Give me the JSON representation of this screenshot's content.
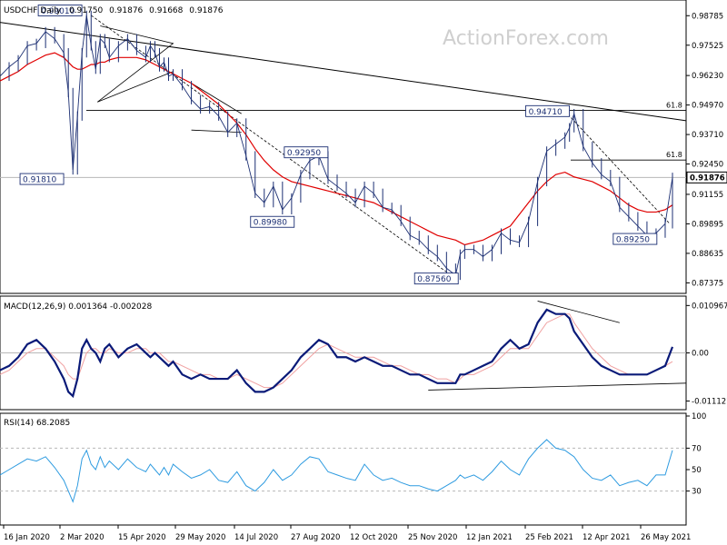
{
  "watermark": "ActionForex.com",
  "colors": {
    "price": "#1c2f73",
    "ma": "#e00000",
    "trend": "#000000",
    "grid": "#b8b8b8",
    "macd": "#0a1a78",
    "signal": "#f0a0a0",
    "rsi": "#2e9be0",
    "box": "#1c2f73"
  },
  "chart_data": [
    {
      "type": "line",
      "title": "USDCHF Daily",
      "ohlc": [
        "0.91750",
        "0.91876",
        "0.91668",
        "0.91876"
      ],
      "y_ticks": [
        "0.98785",
        "0.97525",
        "0.96230",
        "0.94970",
        "0.93710",
        "0.92450",
        "0.91155",
        "0.89895",
        "0.88635",
        "0.87375"
      ],
      "ylim": [
        0.8708,
        0.993
      ],
      "current_price": "0.91876",
      "x": [
        0,
        10,
        20,
        30,
        40,
        50,
        60,
        70,
        75,
        80,
        85,
        90,
        95,
        100,
        105,
        110,
        115,
        120,
        130,
        140,
        150,
        160,
        165,
        170,
        175,
        180,
        185,
        190,
        200,
        210,
        220,
        230,
        240,
        250,
        260,
        270,
        280,
        290,
        300,
        310,
        320,
        330,
        340,
        350,
        360,
        370,
        380,
        390,
        400,
        410,
        420,
        430,
        440,
        450,
        460,
        470,
        480,
        490,
        500,
        505,
        510,
        520,
        530,
        540,
        550,
        560,
        570,
        580,
        590,
        600,
        610,
        620,
        625,
        630,
        640,
        650,
        660,
        670,
        680,
        690,
        700,
        710,
        720,
        730,
        738
      ],
      "price": [
        0.962,
        0.966,
        0.969,
        0.975,
        0.976,
        0.981,
        0.978,
        0.972,
        0.955,
        0.922,
        0.945,
        0.972,
        0.988,
        0.975,
        0.965,
        0.978,
        0.976,
        0.97,
        0.975,
        0.978,
        0.973,
        0.97,
        0.975,
        0.972,
        0.966,
        0.968,
        0.962,
        0.963,
        0.958,
        0.952,
        0.948,
        0.949,
        0.945,
        0.938,
        0.942,
        0.928,
        0.912,
        0.908,
        0.915,
        0.905,
        0.91,
        0.92,
        0.926,
        0.928,
        0.918,
        0.915,
        0.912,
        0.908,
        0.915,
        0.912,
        0.906,
        0.905,
        0.9,
        0.894,
        0.892,
        0.888,
        0.885,
        0.88,
        0.877,
        0.886,
        0.888,
        0.888,
        0.885,
        0.888,
        0.895,
        0.892,
        0.891,
        0.9,
        0.917,
        0.93,
        0.933,
        0.936,
        0.94,
        0.946,
        0.932,
        0.925,
        0.92,
        0.917,
        0.906,
        0.902,
        0.898,
        0.894,
        0.895,
        0.899,
        0.9188
      ],
      "ma": [
        0.96,
        0.962,
        0.964,
        0.967,
        0.969,
        0.971,
        0.972,
        0.97,
        0.968,
        0.966,
        0.965,
        0.965,
        0.966,
        0.967,
        0.967,
        0.968,
        0.968,
        0.969,
        0.97,
        0.97,
        0.97,
        0.969,
        0.968,
        0.967,
        0.966,
        0.965,
        0.964,
        0.963,
        0.961,
        0.959,
        0.956,
        0.953,
        0.95,
        0.946,
        0.942,
        0.937,
        0.931,
        0.926,
        0.922,
        0.919,
        0.917,
        0.916,
        0.915,
        0.914,
        0.913,
        0.912,
        0.911,
        0.91,
        0.909,
        0.908,
        0.906,
        0.904,
        0.902,
        0.9,
        0.898,
        0.896,
        0.894,
        0.893,
        0.892,
        0.891,
        0.89,
        0.891,
        0.892,
        0.894,
        0.896,
        0.898,
        0.903,
        0.908,
        0.913,
        0.917,
        0.92,
        0.921,
        0.92,
        0.919,
        0.918,
        0.917,
        0.915,
        0.913,
        0.91,
        0.907,
        0.905,
        0.904,
        0.904,
        0.905,
        0.907
      ],
      "levels": [
        {
          "label": "0.99010",
          "value": 0.9901
        },
        {
          "label": "0.91810",
          "value": 0.9181
        },
        {
          "label": "0.89980",
          "value": 0.8998
        },
        {
          "label": "0.92950",
          "value": 0.9295
        },
        {
          "label": "0.87560",
          "value": 0.8756
        },
        {
          "label": "0.94710",
          "value": 0.9471
        },
        {
          "label": "0.89250",
          "value": 0.8925
        }
      ],
      "fib": [
        {
          "label": "61.8",
          "value": 0.9474
        },
        {
          "label": "61.8",
          "value": 0.9262
        }
      ],
      "x_labels": [
        "16 Jan 2020",
        "2 Mar 2020",
        "15 Apr 2020",
        "29 May 2020",
        "14 Jul 2020",
        "27 Aug 2020",
        "12 Oct 2020",
        "25 Nov 2020",
        "12 Jan 2021",
        "25 Feb 2021",
        "12 Apr 2021",
        "26 May 2021"
      ]
    },
    {
      "type": "line",
      "title": "MACD(12,26,9) 0.001364 -0.002028",
      "y_ticks": [
        "0.010967",
        "0.00",
        "-0.011127"
      ],
      "ylim": [
        -0.0125,
        0.0123
      ],
      "x": [
        0,
        10,
        20,
        30,
        40,
        50,
        60,
        70,
        75,
        80,
        85,
        90,
        95,
        100,
        105,
        110,
        115,
        120,
        130,
        140,
        150,
        160,
        165,
        170,
        175,
        180,
        185,
        190,
        200,
        210,
        220,
        230,
        240,
        250,
        260,
        270,
        280,
        290,
        300,
        310,
        320,
        330,
        340,
        350,
        360,
        370,
        380,
        390,
        400,
        410,
        420,
        430,
        440,
        450,
        460,
        470,
        480,
        490,
        500,
        505,
        510,
        520,
        530,
        540,
        550,
        560,
        570,
        580,
        590,
        600,
        610,
        620,
        625,
        630,
        640,
        650,
        660,
        670,
        680,
        690,
        700,
        710,
        720,
        730,
        738
      ],
      "macd": [
        -0.004,
        -0.003,
        -0.001,
        0.002,
        0.003,
        0.001,
        -0.002,
        -0.006,
        -0.009,
        -0.01,
        -0.006,
        0.001,
        0.003,
        0.001,
        0.0,
        -0.002,
        0.001,
        0.002,
        -0.001,
        0.001,
        0.002,
        0.0,
        -0.001,
        0.0,
        -0.001,
        -0.002,
        -0.003,
        -0.002,
        -0.005,
        -0.006,
        -0.005,
        -0.006,
        -0.006,
        -0.006,
        -0.004,
        -0.007,
        -0.009,
        -0.009,
        -0.008,
        -0.006,
        -0.004,
        -0.001,
        0.001,
        0.003,
        0.002,
        -0.001,
        -0.001,
        -0.002,
        -0.001,
        -0.002,
        -0.003,
        -0.003,
        -0.004,
        -0.005,
        -0.005,
        -0.006,
        -0.007,
        -0.007,
        -0.007,
        -0.005,
        -0.005,
        -0.004,
        -0.003,
        -0.002,
        0.001,
        0.003,
        0.001,
        0.002,
        0.007,
        0.01,
        0.009,
        0.009,
        0.008,
        0.005,
        0.002,
        -0.001,
        -0.003,
        -0.004,
        -0.005,
        -0.005,
        -0.005,
        -0.005,
        -0.004,
        -0.003,
        0.0014
      ],
      "signal": [
        -0.005,
        -0.004,
        -0.002,
        0.0,
        0.001,
        0.001,
        -0.001,
        -0.003,
        -0.005,
        -0.006,
        -0.006,
        -0.003,
        0.0,
        0.001,
        0.001,
        0.0,
        0.0,
        0.001,
        0.0,
        0.0,
        0.001,
        0.001,
        0.0,
        0.0,
        0.0,
        -0.001,
        -0.002,
        -0.002,
        -0.003,
        -0.004,
        -0.005,
        -0.005,
        -0.006,
        -0.006,
        -0.005,
        -0.006,
        -0.007,
        -0.008,
        -0.008,
        -0.007,
        -0.005,
        -0.003,
        -0.001,
        0.001,
        0.002,
        0.001,
        0.0,
        -0.001,
        -0.001,
        -0.001,
        -0.002,
        -0.003,
        -0.003,
        -0.004,
        -0.005,
        -0.005,
        -0.006,
        -0.006,
        -0.007,
        -0.006,
        -0.005,
        -0.005,
        -0.004,
        -0.003,
        -0.001,
        0.001,
        0.001,
        0.001,
        0.004,
        0.007,
        0.008,
        0.009,
        0.009,
        0.007,
        0.004,
        0.001,
        -0.001,
        -0.003,
        -0.004,
        -0.005,
        -0.005,
        -0.005,
        -0.004,
        -0.003,
        -0.002
      ]
    },
    {
      "type": "line",
      "title": "RSI(14) 68.2085",
      "y_ticks": [
        "100",
        "70",
        "50",
        "30"
      ],
      "ylim": [
        0,
        100
      ],
      "x": [
        0,
        10,
        20,
        30,
        40,
        50,
        60,
        70,
        75,
        80,
        85,
        90,
        95,
        100,
        105,
        110,
        115,
        120,
        130,
        140,
        150,
        160,
        165,
        170,
        175,
        180,
        185,
        190,
        200,
        210,
        220,
        230,
        240,
        250,
        260,
        270,
        280,
        290,
        300,
        310,
        320,
        330,
        340,
        350,
        360,
        370,
        380,
        390,
        400,
        410,
        420,
        430,
        440,
        450,
        460,
        470,
        480,
        490,
        500,
        505,
        510,
        520,
        530,
        540,
        550,
        560,
        570,
        580,
        590,
        600,
        610,
        620,
        625,
        630,
        640,
        650,
        660,
        670,
        680,
        690,
        700,
        710,
        720,
        730,
        738
      ],
      "rsi": [
        45,
        50,
        55,
        60,
        58,
        62,
        52,
        40,
        30,
        20,
        35,
        60,
        68,
        55,
        50,
        62,
        52,
        58,
        50,
        60,
        52,
        48,
        55,
        50,
        45,
        52,
        45,
        55,
        48,
        42,
        45,
        50,
        40,
        38,
        48,
        35,
        30,
        38,
        50,
        40,
        45,
        55,
        62,
        60,
        48,
        45,
        42,
        40,
        55,
        45,
        40,
        42,
        38,
        35,
        35,
        32,
        30,
        35,
        40,
        45,
        42,
        45,
        40,
        48,
        58,
        50,
        45,
        60,
        70,
        78,
        70,
        68,
        65,
        62,
        50,
        42,
        40,
        45,
        35,
        38,
        40,
        35,
        45,
        45,
        68
      ]
    }
  ]
}
